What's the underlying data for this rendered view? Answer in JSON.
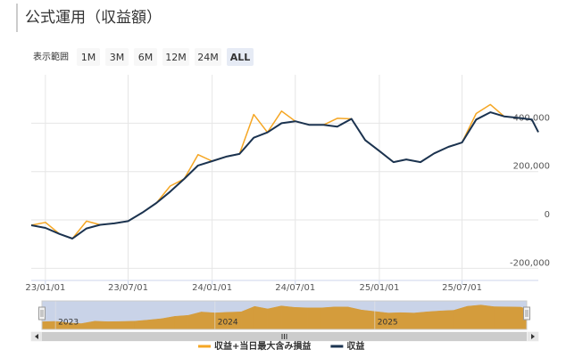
{
  "chart_data": {
    "type": "line",
    "title": "公式運用（収益額）",
    "x": [
      "2022-12-01",
      "2023-01-01",
      "2023-02-01",
      "2023-03-01",
      "2023-04-01",
      "2023-05-01",
      "2023-06-01",
      "2023-07-01",
      "2023-08-01",
      "2023-09-01",
      "2023-10-01",
      "2023-11-01",
      "2023-12-01",
      "2024-01-01",
      "2024-02-01",
      "2024-03-01",
      "2024-04-01",
      "2024-05-01",
      "2024-06-01",
      "2024-07-01",
      "2024-08-01",
      "2024-09-01",
      "2024-10-01",
      "2024-11-01",
      "2024-12-01",
      "2025-01-01",
      "2025-02-01",
      "2025-03-01",
      "2025-04-01",
      "2025-05-01",
      "2025-06-01",
      "2025-07-01",
      "2025-08-01",
      "2025-09-01",
      "2025-10-01",
      "2025-11-01",
      "2025-12-01",
      "2025-12-15"
    ],
    "series": [
      {
        "name": "収益+当日最大含み損益",
        "color": "#f5a623",
        "values": [
          -22000,
          -10000,
          -58000,
          -77000,
          -5000,
          -20000,
          -14000,
          -5000,
          30000,
          70000,
          140000,
          170000,
          270000,
          243000,
          262000,
          273000,
          436000,
          362000,
          450000,
          408000,
          393000,
          393000,
          420000,
          418000,
          330000,
          285000,
          239000,
          250000,
          239000,
          275000,
          302000,
          320000,
          440000,
          477000,
          428000,
          422000,
          415000,
          363000
        ]
      },
      {
        "name": "収益",
        "color": "#1b3350",
        "values": [
          -22000,
          -33000,
          -58000,
          -77000,
          -35000,
          -20000,
          -14000,
          -5000,
          30000,
          70000,
          117000,
          170000,
          225000,
          243000,
          262000,
          273000,
          340000,
          362000,
          400000,
          408000,
          393000,
          393000,
          386000,
          418000,
          330000,
          285000,
          239000,
          250000,
          239000,
          275000,
          302000,
          320000,
          415000,
          445000,
          428000,
          422000,
          415000,
          363000
        ]
      }
    ],
    "xlim": [
      "2022-12-01",
      "2025-12-15"
    ],
    "xticks": [
      {
        "value": "2023-01-01",
        "label": "23/01/01"
      },
      {
        "value": "2023-07-01",
        "label": "23/07/01"
      },
      {
        "value": "2024-01-01",
        "label": "24/01/01"
      },
      {
        "value": "2024-07-01",
        "label": "24/07/01"
      },
      {
        "value": "2025-01-01",
        "label": "25/01/01"
      },
      {
        "value": "2025-07-01",
        "label": "25/07/01"
      }
    ],
    "ylim": [
      -250000,
      600000
    ],
    "yticks": [
      {
        "value": -200000,
        "label": "-200,000"
      },
      0,
      {
        "value": 200000,
        "label": "200,000"
      },
      {
        "value": 400000,
        "label": "400,000"
      }
    ],
    "grid": true,
    "navigator_ticks": [
      {
        "value": "2023-01-01",
        "label": "2023"
      },
      {
        "value": "2024-01-01",
        "label": "2024"
      },
      {
        "value": "2025-01-01",
        "label": "2025"
      }
    ]
  },
  "range_selector": {
    "label": "表示範囲",
    "buttons": [
      "1M",
      "3M",
      "6M",
      "12M",
      "24M",
      "ALL"
    ],
    "selected_index": 5
  }
}
